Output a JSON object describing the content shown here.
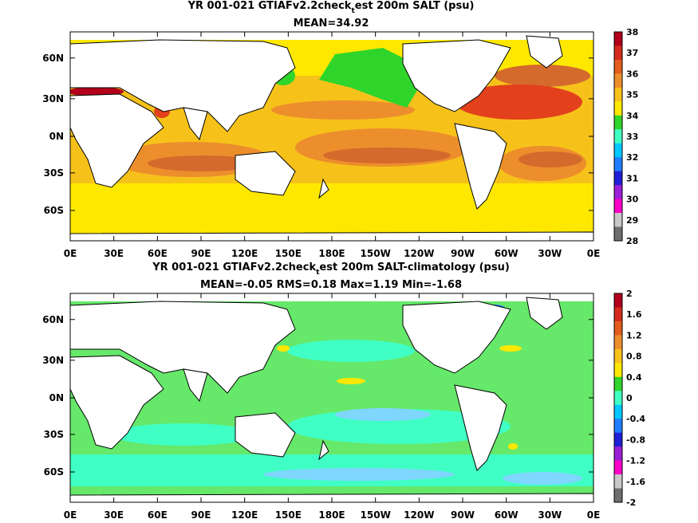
{
  "panels": [
    {
      "title_pre": "YR 001-021 GTIAFv2.2check",
      "title_sub": "t",
      "title_post": "est 200m SALT (psu)",
      "stats": "MEAN=34.92",
      "colorbar": {
        "labels": [
          "38",
          "37",
          "36",
          "35",
          "34",
          "33",
          "32",
          "31",
          "30",
          "29",
          "28"
        ],
        "colors": [
          "#b3001b",
          "#d42a1d",
          "#e35d1c",
          "#ed8e2c",
          "#f6c21a",
          "#ffe800",
          "#2fd52a",
          "#40ffc4",
          "#00c8ff",
          "#1f7dff",
          "#1f1fd6",
          "#9a1fd6",
          "#ff00c8",
          "#c8c8c8",
          "#6e6e6e"
        ]
      }
    },
    {
      "title_pre": "YR 001-021 GTIAFv2.2check",
      "title_sub": "t",
      "title_post": "est 200m SALT-climatology (psu)",
      "stats": "MEAN=-0.05   RMS=0.18   Max=1.19   Min=-1.68",
      "colorbar": {
        "labels": [
          "2",
          "1.6",
          "1.2",
          "0.8",
          "0.4",
          "0",
          "-0.4",
          "-0.8",
          "-1.2",
          "-1.6",
          "-2"
        ],
        "colors": [
          "#b3001b",
          "#d42a1d",
          "#e35d1c",
          "#ed8e2c",
          "#f6c21a",
          "#ffe800",
          "#2fd52a",
          "#40ffc4",
          "#00c8ff",
          "#1f7dff",
          "#1f1fd6",
          "#9a1fd6",
          "#ff00c8",
          "#c8c8c8",
          "#6e6e6e"
        ]
      }
    }
  ],
  "lon_ticks": [
    "0E",
    "30E",
    "60E",
    "90E",
    "120E",
    "150E",
    "180E",
    "150W",
    "120W",
    "90W",
    "60W",
    "30W",
    "0E"
  ],
  "lat_ticks": [
    "60N",
    "30N",
    "0N",
    "30S",
    "60S"
  ],
  "fill_colors": {
    "top_base": "#ffe800",
    "top_orange": "#f6c21a",
    "top_deep": "#ed8e2c",
    "top_brown": "#d46a2c",
    "top_red": "#e3401c",
    "top_green": "#2fd52a",
    "bot_base": "#66e86a",
    "bot_cyan": "#40ffc4",
    "bot_light": "#7fd6ff",
    "bot_blue": "#1f7dff",
    "bot_yellow": "#ffe800"
  }
}
